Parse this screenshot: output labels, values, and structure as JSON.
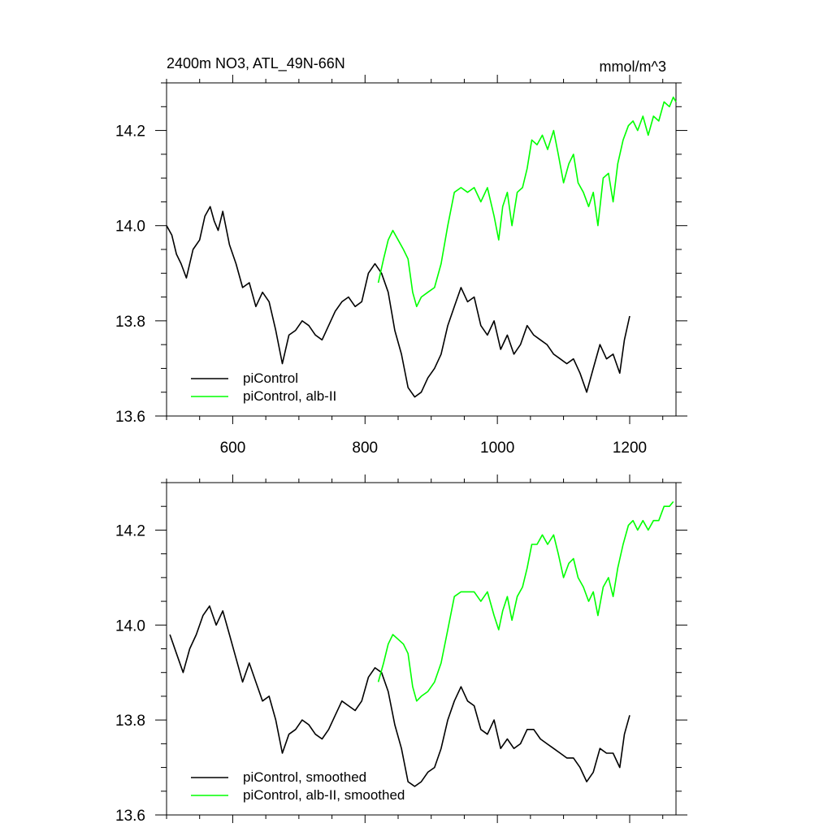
{
  "chart_data": [
    {
      "type": "line",
      "title": "2400m NO3, ATL_49N-66N",
      "units": "mmol/m^3",
      "xlim": [
        500,
        1270
      ],
      "ylim": [
        13.6,
        14.3
      ],
      "x_ticks": [
        600,
        800,
        1000,
        1200
      ],
      "x_tick_labels": [
        "600",
        "800",
        "1000",
        "1200"
      ],
      "y_ticks": [
        13.6,
        13.8,
        14.0,
        14.2
      ],
      "y_tick_labels": [
        "13.6",
        "13.8",
        "14.0",
        "14.2"
      ],
      "grid": false,
      "legend_position": "bottom-left",
      "series": [
        {
          "name": "piControl",
          "color": "#000000",
          "x": [
            500,
            508,
            515,
            522,
            530,
            540,
            550,
            558,
            566,
            572,
            578,
            585,
            595,
            605,
            615,
            625,
            635,
            645,
            655,
            665,
            675,
            685,
            695,
            705,
            715,
            725,
            735,
            745,
            755,
            765,
            775,
            785,
            795,
            805,
            815,
            825,
            835,
            845,
            855,
            865,
            875,
            885,
            895,
            905,
            915,
            925,
            935,
            945,
            955,
            965,
            975,
            985,
            995,
            1005,
            1015,
            1025,
            1035,
            1045,
            1055,
            1065,
            1075,
            1085,
            1095,
            1105,
            1115,
            1125,
            1135,
            1145,
            1155,
            1165,
            1175,
            1185,
            1192,
            1200
          ],
          "y": [
            14.0,
            13.98,
            13.94,
            13.92,
            13.89,
            13.95,
            13.97,
            14.02,
            14.04,
            14.01,
            13.99,
            14.03,
            13.96,
            13.92,
            13.87,
            13.88,
            13.83,
            13.86,
            13.84,
            13.78,
            13.71,
            13.77,
            13.78,
            13.8,
            13.79,
            13.77,
            13.76,
            13.79,
            13.82,
            13.84,
            13.85,
            13.83,
            13.84,
            13.9,
            13.92,
            13.9,
            13.86,
            13.78,
            13.73,
            13.66,
            13.64,
            13.65,
            13.68,
            13.7,
            13.73,
            13.79,
            13.83,
            13.87,
            13.84,
            13.85,
            13.79,
            13.77,
            13.8,
            13.74,
            13.77,
            13.73,
            13.75,
            13.79,
            13.77,
            13.76,
            13.75,
            13.73,
            13.72,
            13.71,
            13.72,
            13.69,
            13.65,
            13.7,
            13.75,
            13.72,
            13.73,
            13.69,
            13.76,
            13.81
          ]
        },
        {
          "name": "piControl, alb-II",
          "color": "#00ff00",
          "x": [
            820,
            828,
            835,
            842,
            850,
            858,
            865,
            872,
            878,
            885,
            895,
            905,
            915,
            925,
            935,
            945,
            955,
            965,
            975,
            985,
            995,
            1002,
            1008,
            1015,
            1022,
            1030,
            1038,
            1045,
            1052,
            1060,
            1068,
            1076,
            1085,
            1092,
            1100,
            1108,
            1115,
            1122,
            1130,
            1138,
            1145,
            1152,
            1160,
            1168,
            1175,
            1182,
            1190,
            1198,
            1205,
            1212,
            1220,
            1228,
            1236,
            1244,
            1252,
            1260,
            1266,
            1270
          ],
          "y": [
            13.88,
            13.93,
            13.97,
            13.99,
            13.97,
            13.95,
            13.93,
            13.86,
            13.83,
            13.85,
            13.86,
            13.87,
            13.92,
            14.0,
            14.07,
            14.08,
            14.07,
            14.08,
            14.05,
            14.08,
            14.02,
            13.97,
            14.04,
            14.07,
            14.0,
            14.07,
            14.08,
            14.12,
            14.18,
            14.17,
            14.19,
            14.16,
            14.2,
            14.15,
            14.09,
            14.13,
            14.15,
            14.09,
            14.07,
            14.04,
            14.07,
            14.0,
            14.1,
            14.11,
            14.05,
            14.13,
            14.18,
            14.21,
            14.22,
            14.2,
            14.23,
            14.19,
            14.23,
            14.22,
            14.26,
            14.25,
            14.27,
            14.26
          ]
        }
      ]
    },
    {
      "type": "line",
      "xlim": [
        500,
        1270
      ],
      "ylim": [
        13.6,
        14.3
      ],
      "x_ticks": [
        600,
        800,
        1000,
        1200
      ],
      "y_ticks": [
        13.6,
        13.8,
        14.0,
        14.2
      ],
      "y_tick_labels": [
        "13.6",
        "13.8",
        "14.0",
        "14.2"
      ],
      "grid": false,
      "legend_position": "bottom-left",
      "series": [
        {
          "name": "piControl, smoothed",
          "color": "#000000",
          "x": [
            505,
            515,
            525,
            535,
            545,
            555,
            565,
            570,
            575,
            585,
            595,
            605,
            615,
            625,
            635,
            645,
            655,
            665,
            675,
            685,
            695,
            705,
            715,
            725,
            735,
            745,
            755,
            765,
            775,
            785,
            795,
            805,
            815,
            825,
            835,
            845,
            855,
            865,
            875,
            885,
            895,
            905,
            915,
            925,
            935,
            945,
            955,
            965,
            975,
            985,
            995,
            1005,
            1015,
            1025,
            1035,
            1045,
            1055,
            1065,
            1075,
            1085,
            1095,
            1105,
            1115,
            1125,
            1135,
            1145,
            1155,
            1165,
            1175,
            1185,
            1192,
            1200
          ],
          "y": [
            13.98,
            13.94,
            13.9,
            13.95,
            13.98,
            14.02,
            14.04,
            14.02,
            14.0,
            14.03,
            13.98,
            13.93,
            13.88,
            13.92,
            13.88,
            13.84,
            13.85,
            13.8,
            13.73,
            13.77,
            13.78,
            13.8,
            13.79,
            13.77,
            13.76,
            13.78,
            13.81,
            13.84,
            13.83,
            13.82,
            13.84,
            13.89,
            13.91,
            13.9,
            13.86,
            13.79,
            13.74,
            13.67,
            13.66,
            13.67,
            13.69,
            13.7,
            13.74,
            13.8,
            13.84,
            13.87,
            13.84,
            13.83,
            13.78,
            13.77,
            13.8,
            13.74,
            13.76,
            13.74,
            13.75,
            13.78,
            13.78,
            13.76,
            13.75,
            13.74,
            13.73,
            13.72,
            13.72,
            13.7,
            13.67,
            13.69,
            13.74,
            13.73,
            13.73,
            13.7,
            13.77,
            13.81
          ]
        },
        {
          "name": "piControl, alb-II, smoothed",
          "color": "#00ff00",
          "x": [
            820,
            828,
            835,
            842,
            850,
            858,
            865,
            872,
            878,
            885,
            895,
            905,
            915,
            925,
            935,
            945,
            955,
            965,
            975,
            985,
            995,
            1002,
            1008,
            1015,
            1022,
            1030,
            1038,
            1045,
            1052,
            1060,
            1068,
            1076,
            1085,
            1092,
            1100,
            1108,
            1115,
            1122,
            1130,
            1138,
            1145,
            1152,
            1160,
            1168,
            1175,
            1182,
            1190,
            1198,
            1205,
            1212,
            1220,
            1228,
            1236,
            1244,
            1252,
            1260,
            1266
          ],
          "y": [
            13.88,
            13.92,
            13.96,
            13.98,
            13.97,
            13.96,
            13.94,
            13.87,
            13.84,
            13.85,
            13.86,
            13.88,
            13.92,
            13.99,
            14.06,
            14.07,
            14.07,
            14.07,
            14.05,
            14.07,
            14.02,
            13.99,
            14.03,
            14.06,
            14.01,
            14.06,
            14.08,
            14.12,
            14.17,
            14.17,
            14.19,
            14.17,
            14.19,
            14.15,
            14.1,
            14.13,
            14.14,
            14.1,
            14.08,
            14.05,
            14.07,
            14.02,
            14.08,
            14.1,
            14.06,
            14.12,
            14.17,
            14.21,
            14.22,
            14.2,
            14.22,
            14.2,
            14.22,
            14.22,
            14.25,
            14.25,
            14.26
          ]
        }
      ]
    }
  ]
}
